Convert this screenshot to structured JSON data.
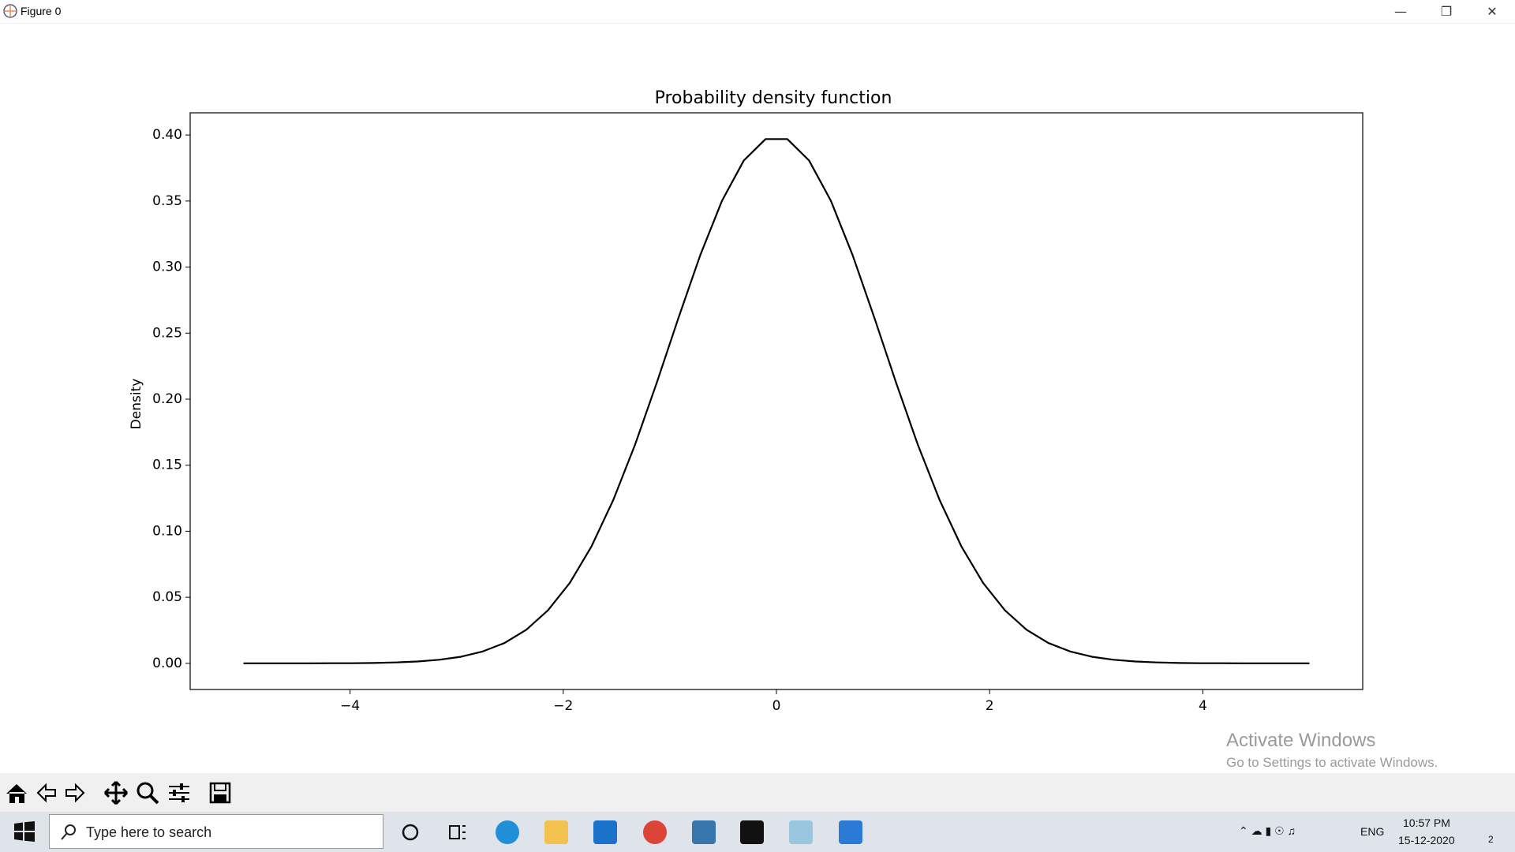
{
  "window": {
    "title": "Figure 0"
  },
  "chart_data": {
    "type": "line",
    "title": "Probability density function",
    "y_label": "Density",
    "x": [
      -5.0,
      -4.7959,
      -4.5918,
      -4.3878,
      -4.1837,
      -3.9796,
      -3.7755,
      -3.5714,
      -3.3673,
      -3.1633,
      -2.9592,
      -2.7551,
      -2.551,
      -2.3469,
      -2.1429,
      -1.9388,
      -1.7347,
      -1.5306,
      -1.3265,
      -1.1224,
      -0.9184,
      -0.7143,
      -0.5102,
      -0.3061,
      -0.102,
      0.102,
      0.3061,
      0.5102,
      0.7143,
      0.9184,
      1.1224,
      1.3265,
      1.5306,
      1.7347,
      1.9388,
      2.1429,
      2.3469,
      2.551,
      2.7551,
      2.9592,
      3.1633,
      3.3673,
      3.5714,
      3.7755,
      3.9796,
      4.1837,
      4.3878,
      4.5918,
      4.7959,
      5.0
    ],
    "series": [
      {
        "color": "#000000",
        "values": [
          0.0,
          0.0,
          0.0,
          0.0,
          0.0001,
          0.0001,
          0.0003,
          0.0007,
          0.0014,
          0.0027,
          0.005,
          0.009,
          0.0154,
          0.0254,
          0.0402,
          0.0609,
          0.0886,
          0.1237,
          0.1655,
          0.2125,
          0.2617,
          0.3091,
          0.3503,
          0.3807,
          0.3969,
          0.3969,
          0.3807,
          0.3503,
          0.3091,
          0.2617,
          0.2125,
          0.1655,
          0.1237,
          0.0886,
          0.0609,
          0.0402,
          0.0254,
          0.0154,
          0.009,
          0.005,
          0.0027,
          0.0014,
          0.0007,
          0.0003,
          0.0001,
          0.0001,
          0.0,
          0.0,
          0.0,
          0.0
        ]
      }
    ],
    "xlim": [
      -5.5,
      5.5
    ],
    "xticks": [
      {
        "value": -4,
        "label": "−4"
      },
      {
        "value": -2,
        "label": "−2"
      },
      0,
      2,
      4
    ],
    "ylim": [
      -0.0198,
      0.4168
    ],
    "yticks": [
      {
        "value": 0,
        "label": "0.00"
      },
      {
        "value": 0.05,
        "label": "0.05"
      },
      {
        "value": 0.1,
        "label": "0.10"
      },
      {
        "value": 0.15,
        "label": "0.15"
      },
      {
        "value": 0.2,
        "label": "0.20"
      },
      {
        "value": 0.25,
        "label": "0.25"
      },
      {
        "value": 0.3,
        "label": "0.30"
      },
      {
        "value": 0.35,
        "label": "0.35"
      },
      {
        "value": 0.4,
        "label": "0.40"
      }
    ],
    "grid": false
  },
  "watermark": {
    "title": "Activate Windows",
    "subtitle": "Go to Settings to activate Windows."
  },
  "taskbar": {
    "search": "Type here to search",
    "language": "ENG",
    "time": "10:57 PM",
    "date": "15-12-2020",
    "notifications": "2"
  }
}
